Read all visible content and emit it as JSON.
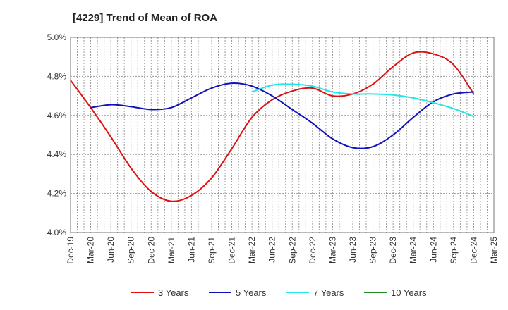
{
  "chart_data": {
    "type": "line",
    "title": "[4229]  Trend of Mean of ROA",
    "xlabel": "",
    "ylabel": "",
    "y_unit": "%",
    "ylim": [
      4.0,
      5.0
    ],
    "y_ticks": [
      "4.0%",
      "4.2%",
      "4.4%",
      "4.6%",
      "4.8%",
      "5.0%"
    ],
    "x_ticks": [
      "Dec-19",
      "Mar-20",
      "Jun-20",
      "Sep-20",
      "Dec-20",
      "Mar-21",
      "Jun-21",
      "Sep-21",
      "Dec-21",
      "Mar-22",
      "Jun-22",
      "Sep-22",
      "Dec-22",
      "Mar-23",
      "Jun-23",
      "Sep-23",
      "Dec-23",
      "Mar-24",
      "Jun-24",
      "Sep-24",
      "Dec-24",
      "Mar-25"
    ],
    "grid": true,
    "legend_position": "bottom",
    "series": [
      {
        "name": "3 Years",
        "color": "#dd1111",
        "x": [
          "Dec-19",
          "Mar-20",
          "Jun-20",
          "Sep-20",
          "Dec-20",
          "Mar-21",
          "Jun-21",
          "Sep-21",
          "Dec-21",
          "Mar-22",
          "Jun-22",
          "Sep-22",
          "Dec-22",
          "Mar-23",
          "Jun-23",
          "Sep-23",
          "Dec-23",
          "Mar-24",
          "Jun-24",
          "Sep-24",
          "Dec-24"
        ],
        "values": [
          4.78,
          4.64,
          4.49,
          4.33,
          4.21,
          4.16,
          4.19,
          4.28,
          4.43,
          4.59,
          4.68,
          4.725,
          4.74,
          4.7,
          4.71,
          4.76,
          4.85,
          4.92,
          4.915,
          4.86,
          4.71
        ]
      },
      {
        "name": "5 Years",
        "color": "#1111bb",
        "x": [
          "Mar-20",
          "Jun-20",
          "Sep-20",
          "Dec-20",
          "Mar-21",
          "Jun-21",
          "Sep-21",
          "Dec-21",
          "Mar-22",
          "Jun-22",
          "Sep-22",
          "Dec-22",
          "Mar-23",
          "Jun-23",
          "Sep-23",
          "Dec-23",
          "Mar-24",
          "Jun-24",
          "Sep-24",
          "Dec-24"
        ],
        "values": [
          4.64,
          4.655,
          4.645,
          4.63,
          4.64,
          4.69,
          4.74,
          4.765,
          4.75,
          4.7,
          4.63,
          4.56,
          4.48,
          4.435,
          4.44,
          4.5,
          4.59,
          4.67,
          4.71,
          4.72
        ]
      },
      {
        "name": "7 Years",
        "color": "#22e5e5",
        "x": [
          "Mar-22",
          "Jun-22",
          "Sep-22",
          "Dec-22",
          "Mar-23",
          "Jun-23",
          "Sep-23",
          "Dec-23",
          "Mar-24",
          "Jun-24",
          "Sep-24",
          "Dec-24"
        ],
        "values": [
          4.72,
          4.755,
          4.76,
          4.75,
          4.72,
          4.71,
          4.71,
          4.705,
          4.69,
          4.665,
          4.635,
          4.595
        ]
      },
      {
        "name": "10 Years",
        "color": "#228822",
        "x": [],
        "values": []
      }
    ]
  }
}
